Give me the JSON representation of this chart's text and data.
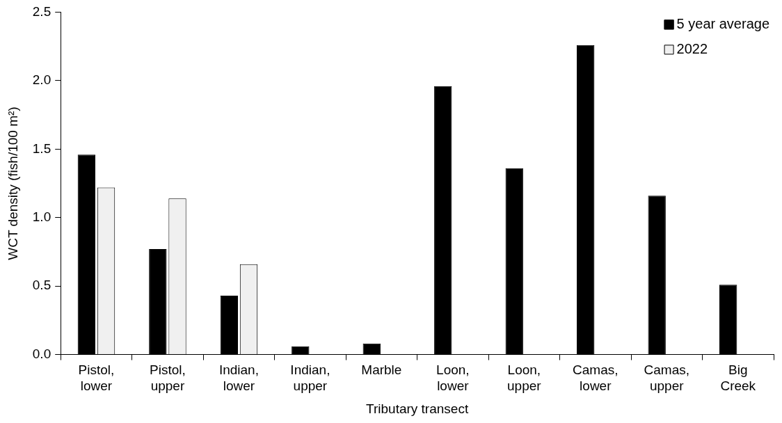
{
  "chart_data": {
    "type": "bar",
    "xlabel": "Tributary transect",
    "ylabel": "WCT density (fish/100 m²)",
    "categories": [
      "Pistol, lower",
      "Pistol, upper",
      "Indian, lower",
      "Indian, upper",
      "Marble",
      "Loon, lower",
      "Loon, upper",
      "Camas, lower",
      "Camas, upper",
      "Big Creek"
    ],
    "series": [
      {
        "name": "5 year average",
        "color": "#000000",
        "values": [
          1.46,
          0.77,
          0.43,
          0.06,
          0.08,
          1.96,
          1.36,
          2.26,
          1.16,
          0.51
        ]
      },
      {
        "name": "2022",
        "color": "#f0f0f0",
        "values": [
          1.22,
          1.14,
          0.66,
          null,
          null,
          null,
          null,
          null,
          null,
          null
        ]
      }
    ],
    "ylim": [
      0,
      2.5
    ],
    "yticks": [
      {
        "value": 0,
        "label": "0.0"
      },
      {
        "value": 0.5,
        "label": "0.5"
      },
      {
        "value": 1,
        "label": "1.0"
      },
      {
        "value": 1.5,
        "label": "1.5"
      },
      {
        "value": 2,
        "label": "2.0"
      },
      {
        "value": 2.5,
        "label": "2.5"
      }
    ],
    "grid": false,
    "legend": "top right"
  }
}
